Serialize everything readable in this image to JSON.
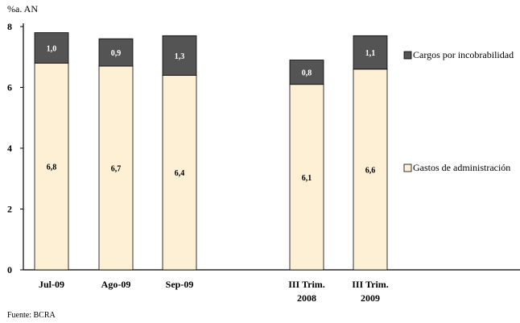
{
  "chart_data": {
    "type": "bar",
    "stacked": true,
    "unit_label": "%a. AN",
    "categories": [
      [
        "Jul-09"
      ],
      [
        "Ago-09"
      ],
      [
        "Sep-09"
      ],
      [
        "III Trim.",
        "2008"
      ],
      [
        "III Trim.",
        "2009"
      ]
    ],
    "series": [
      {
        "name": "Gastos de administración",
        "color": "#fdf0d5",
        "values": [
          6.8,
          6.7,
          6.4,
          6.1,
          6.6
        ],
        "labels": [
          "6,8",
          "6,7",
          "6,4",
          "6,1",
          "6,6"
        ]
      },
      {
        "name": "Cargos por incobrabilidad",
        "color": "#545454",
        "values": [
          1.0,
          0.9,
          1.3,
          0.8,
          1.1
        ],
        "labels": [
          "1,0",
          "0,9",
          "1,3",
          "0,8",
          "1,1"
        ]
      }
    ],
    "ylim": [
      0,
      8
    ],
    "yticks": [
      0,
      2,
      4,
      6,
      8
    ],
    "grid": false,
    "legend_position": "right"
  },
  "footer": {
    "source": "Fuente: BCRA"
  }
}
